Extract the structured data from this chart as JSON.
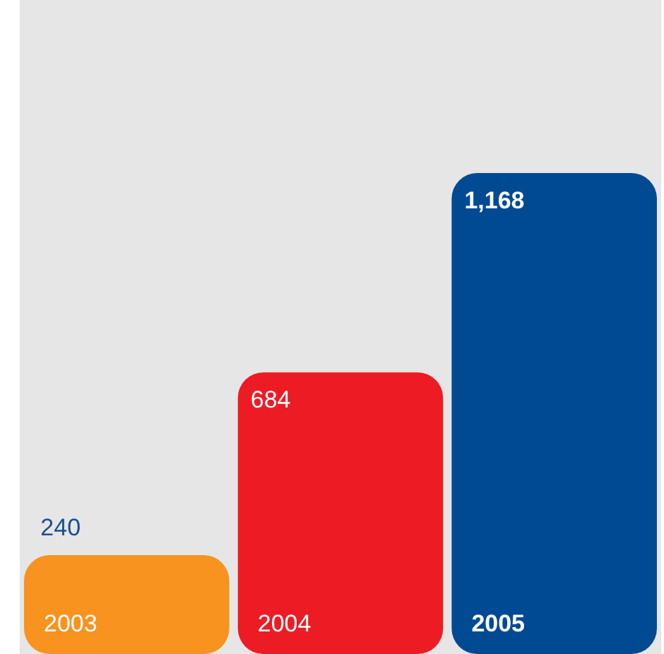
{
  "chart_data": {
    "type": "bar",
    "categories": [
      "2003",
      "2004",
      "2005"
    ],
    "values": [
      240,
      684,
      1168
    ],
    "value_labels": [
      "240",
      "684",
      "1,168"
    ],
    "colors": [
      "#f7931e",
      "#ed1c24",
      "#004a93"
    ]
  }
}
